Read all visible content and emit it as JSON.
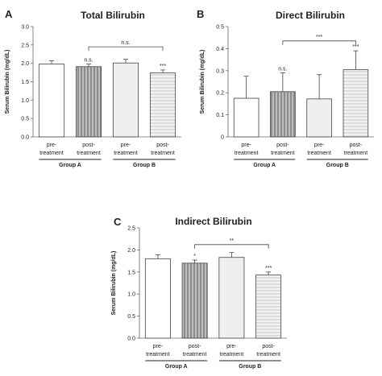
{
  "chart_data": [
    {
      "panel_letter": "A",
      "type": "bar",
      "title": "Total Bilirubin",
      "ylabel": "Serum Bilirubin (mg/dL)",
      "ylim": [
        0,
        3.0
      ],
      "yticks": [
        "0.0",
        "0.5",
        "1.0",
        "1.5",
        "2.0",
        "2.5",
        "3.0"
      ],
      "tick_values": [
        0,
        0.5,
        1.0,
        1.5,
        2.0,
        2.5,
        3.0
      ],
      "categories": [
        [
          "pre-",
          "treatment"
        ],
        [
          "post-",
          "treatment"
        ],
        [
          "pre-",
          "treatment"
        ],
        [
          "post-",
          "treatment"
        ]
      ],
      "values": [
        1.98,
        1.91,
        2.01,
        1.74
      ],
      "errors": [
        0.09,
        0.07,
        0.1,
        0.08
      ],
      "fills": [
        "white",
        "vstripe",
        "light",
        "hstripe"
      ],
      "bar_annotations": [
        "",
        "n.s.",
        "",
        "***"
      ],
      "groups": [
        "Group A",
        "Group B"
      ],
      "bracket": {
        "from": 1,
        "to": 3,
        "label": "n.s.",
        "y": 2.45
      },
      "grid": false
    },
    {
      "panel_letter": "B",
      "type": "bar",
      "title": "Direct Bilirubin",
      "ylabel": "Serum Bilirubin (mg/dL)",
      "ylim": [
        0,
        0.5
      ],
      "yticks": [
        "0",
        "0.1",
        "0.2",
        "0.3",
        "0.4",
        "0.5"
      ],
      "tick_values": [
        0,
        0.1,
        0.2,
        0.3,
        0.4,
        0.5
      ],
      "categories": [
        [
          "pre-",
          "treatment"
        ],
        [
          "post-",
          "treatment"
        ],
        [
          "pre-",
          "treatment"
        ],
        [
          "post-",
          "treatment"
        ]
      ],
      "values": [
        0.175,
        0.205,
        0.172,
        0.305
      ],
      "errors": [
        0.1,
        0.085,
        0.11,
        0.085
      ],
      "fills": [
        "white",
        "vstripe",
        "light",
        "hstripe"
      ],
      "bar_annotations": [
        "",
        "n.s.",
        "",
        "***"
      ],
      "groups": [
        "Group A",
        "Group B"
      ],
      "bracket": {
        "from": 1,
        "to": 3,
        "label": "***",
        "y": 0.435
      },
      "grid": false
    },
    {
      "panel_letter": "C",
      "type": "bar",
      "title": "Indirect Bilirubin",
      "ylabel": "Serum Bilirubin (mg/dL)",
      "ylim": [
        0,
        2.5
      ],
      "yticks": [
        "0.0",
        "0.5",
        "1.0",
        "1.5",
        "2.0",
        "2.5"
      ],
      "tick_values": [
        0,
        0.5,
        1.0,
        1.5,
        2.0,
        2.5
      ],
      "categories": [
        [
          "pre-",
          "treatment"
        ],
        [
          "post-",
          "treatment"
        ],
        [
          "pre-",
          "treatment"
        ],
        [
          "post-",
          "treatment"
        ]
      ],
      "values": [
        1.8,
        1.7,
        1.83,
        1.43
      ],
      "errors": [
        0.09,
        0.07,
        0.11,
        0.07
      ],
      "fills": [
        "white",
        "vstripe",
        "light",
        "hstripe"
      ],
      "bar_annotations": [
        "",
        "*",
        "",
        "***"
      ],
      "groups": [
        "Group A",
        "Group B"
      ],
      "bracket": {
        "from": 1,
        "to": 3,
        "label": "**",
        "y": 2.12
      },
      "grid": false
    }
  ]
}
